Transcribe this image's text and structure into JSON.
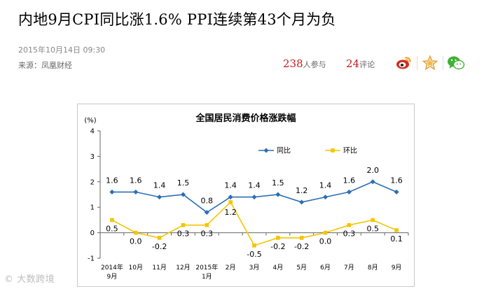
{
  "article": {
    "headline": "内地9月CPI同比涨1.6% PPI连续第43个月为负",
    "date": "2015年10月14日 09:30",
    "source": "来源：凤凰财经",
    "participants_count": "238",
    "participants_label": "人参与",
    "comments_count": "24",
    "comments_label": "评论"
  },
  "share": {
    "weibo_icon": "weibo-icon",
    "favorite_icon": "star-icon",
    "wechat_icon": "wechat-icon"
  },
  "watermark": "© 大数跨境",
  "colors": {
    "series_yoy": "#2a6fb4",
    "series_mom": "#f5c400",
    "favorite": "#e8a33a",
    "weibo": "#d52b1e",
    "wechat": "#41b035"
  },
  "chart_data": {
    "type": "line",
    "title": "全国居民消费价格涨跌幅",
    "ylabel": "(%)",
    "xlabel": "",
    "ylim": [
      -1,
      4
    ],
    "yticks": [
      "4",
      "3",
      "2",
      "1",
      "0",
      "-1"
    ],
    "ytick_values": [
      4,
      3,
      2,
      1,
      0,
      -1
    ],
    "categories": [
      {
        "line1": "2014年",
        "line2": "9月"
      },
      {
        "line1": "10月",
        "line2": ""
      },
      {
        "line1": "11月",
        "line2": ""
      },
      {
        "line1": "12月",
        "line2": ""
      },
      {
        "line1": "2015年",
        "line2": "1月"
      },
      {
        "line1": "2月",
        "line2": ""
      },
      {
        "line1": "3月",
        "line2": ""
      },
      {
        "line1": "4月",
        "line2": ""
      },
      {
        "line1": "5月",
        "line2": ""
      },
      {
        "line1": "6月",
        "line2": ""
      },
      {
        "line1": "7月",
        "line2": ""
      },
      {
        "line1": "8月",
        "line2": ""
      },
      {
        "line1": "9月",
        "line2": ""
      }
    ],
    "series": [
      {
        "name": "同比",
        "values": [
          1.6,
          1.6,
          1.4,
          1.5,
          0.8,
          1.4,
          1.4,
          1.5,
          1.2,
          1.4,
          1.6,
          2.0,
          1.6
        ],
        "labels": [
          "1.6",
          "1.6",
          "1.4",
          "1.5",
          "0.8",
          "1.4",
          "1.4",
          "1.5",
          "1.2",
          "1.4",
          "1.6",
          "2.0",
          "1.6"
        ],
        "marker": "diamond"
      },
      {
        "name": "环比",
        "values": [
          0.5,
          0.0,
          -0.2,
          0.3,
          0.3,
          1.2,
          -0.5,
          -0.2,
          -0.2,
          0.0,
          0.3,
          0.5,
          0.1
        ],
        "labels": [
          "0.5",
          "0.0",
          "-0.2",
          "0.3",
          "0.3",
          "1.2",
          "-0.5",
          "-0.2",
          "-0.2",
          "0.0",
          "0.3",
          "0.5",
          "0.1"
        ],
        "marker": "square"
      }
    ],
    "legend_placement": "top-center"
  }
}
